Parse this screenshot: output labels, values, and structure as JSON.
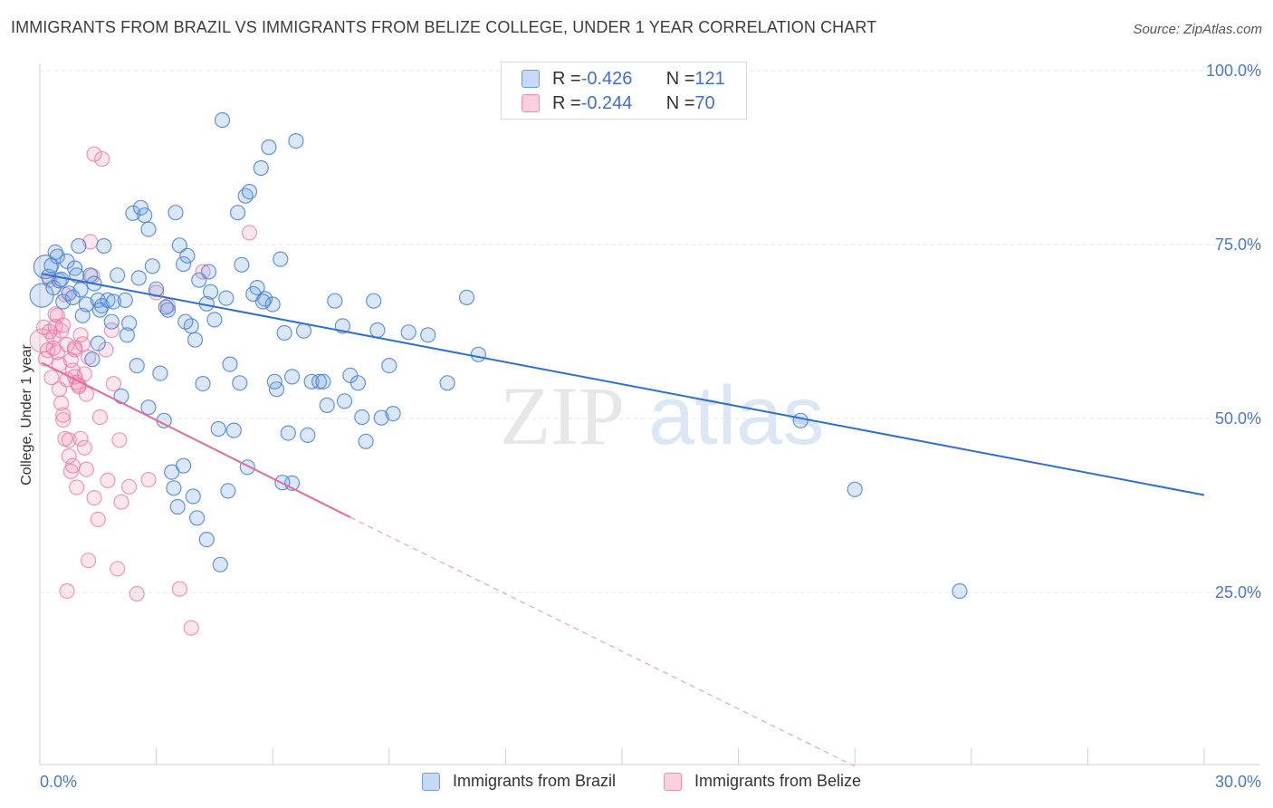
{
  "title": "IMMIGRANTS FROM BRAZIL VS IMMIGRANTS FROM BELIZE COLLEGE, UNDER 1 YEAR CORRELATION CHART",
  "source": "Source: ZipAtlas.com",
  "watermark": {
    "zip": "ZIP",
    "atlas": "atlas"
  },
  "legend": {
    "rows": [
      {
        "r_label": "R = ",
        "r_value": "-0.426",
        "n_label": "N = ",
        "n_value": "121",
        "color": "#6a9fe6"
      },
      {
        "r_label": "R = ",
        "r_value": "-0.244",
        "n_label": "N = ",
        "n_value": "70",
        "color": "#f18bb0"
      }
    ]
  },
  "bottom_legend": [
    {
      "label": "Immigrants from Brazil",
      "color": "#6a9fe6"
    },
    {
      "label": "Immigrants from Belize",
      "color": "#f18bb0"
    }
  ],
  "chart_data": {
    "type": "scatter",
    "title": "IMMIGRANTS FROM BRAZIL VS IMMIGRANTS FROM BELIZE COLLEGE, UNDER 1 YEAR CORRELATION CHART",
    "xlabel": "",
    "ylabel": "College, Under 1 year",
    "xlim": [
      0,
      30
    ],
    "ylim": [
      0,
      105
    ],
    "x_tick_labels": [
      "0.0%",
      "30.0%"
    ],
    "y_ticks": [
      25,
      50,
      75,
      100
    ],
    "y_tick_labels": [
      "25.0%",
      "50.0%",
      "75.0%",
      "100.0%"
    ],
    "grid": true,
    "series": [
      {
        "name": "Immigrants from Brazil",
        "color": "#6a9fe6",
        "trend": {
          "x0": 0.05,
          "y0": 70.8,
          "x1": 30.0,
          "y1": 39.0
        },
        "points": [
          [
            0.05,
            67.7,
            "big"
          ],
          [
            0.15,
            71.8,
            "big"
          ],
          [
            0.22,
            70.4
          ],
          [
            0.3,
            72.0
          ],
          [
            0.35,
            68.8
          ],
          [
            0.45,
            73.3
          ],
          [
            0.5,
            69.8
          ],
          [
            0.55,
            70.0
          ],
          [
            0.6,
            66.8
          ],
          [
            0.7,
            72.6
          ],
          [
            0.75,
            68.0
          ],
          [
            0.85,
            67.4
          ],
          [
            0.9,
            71.6
          ],
          [
            1.0,
            74.8
          ],
          [
            1.05,
            68.5
          ],
          [
            1.1,
            64.8
          ],
          [
            1.2,
            66.4
          ],
          [
            1.3,
            70.6
          ],
          [
            1.4,
            69.4
          ],
          [
            1.5,
            67.0
          ],
          [
            1.6,
            66.2
          ],
          [
            1.65,
            74.8
          ],
          [
            1.75,
            67.0
          ],
          [
            1.85,
            63.9
          ],
          [
            1.9,
            66.8
          ],
          [
            2.0,
            70.6
          ],
          [
            2.1,
            53.2
          ],
          [
            2.2,
            67.0
          ],
          [
            2.3,
            63.7
          ],
          [
            2.4,
            79.5
          ],
          [
            2.5,
            57.6
          ],
          [
            2.6,
            80.3
          ],
          [
            2.7,
            79.2
          ],
          [
            2.8,
            77.2
          ],
          [
            2.9,
            71.9
          ],
          [
            3.0,
            68.6
          ],
          [
            3.1,
            56.5
          ],
          [
            3.2,
            49.7
          ],
          [
            3.3,
            65.6
          ],
          [
            3.4,
            42.3
          ],
          [
            3.5,
            79.6
          ],
          [
            3.6,
            74.9
          ],
          [
            3.7,
            72.2
          ],
          [
            3.8,
            73.4
          ],
          [
            3.9,
            63.3
          ],
          [
            4.0,
            61.3
          ],
          [
            4.1,
            69.9
          ],
          [
            4.2,
            55.0
          ],
          [
            4.3,
            66.5
          ],
          [
            4.4,
            68.2
          ],
          [
            4.5,
            64.2
          ],
          [
            4.6,
            48.5
          ],
          [
            4.7,
            92.9
          ],
          [
            4.8,
            67.3
          ],
          [
            4.9,
            57.8
          ],
          [
            5.0,
            48.3
          ],
          [
            5.1,
            79.6
          ],
          [
            5.2,
            72.1
          ],
          [
            5.3,
            82.0
          ],
          [
            5.4,
            82.6
          ],
          [
            5.5,
            67.9
          ],
          [
            5.6,
            68.8
          ],
          [
            5.7,
            86.0
          ],
          [
            5.8,
            67.2
          ],
          [
            5.9,
            89.0
          ],
          [
            6.0,
            66.4
          ],
          [
            6.1,
            54.2
          ],
          [
            6.2,
            72.9
          ],
          [
            6.3,
            62.3
          ],
          [
            6.4,
            47.9
          ],
          [
            6.5,
            56.0
          ],
          [
            6.6,
            89.9
          ],
          [
            6.8,
            62.6
          ],
          [
            7.0,
            55.3
          ],
          [
            7.2,
            55.3
          ],
          [
            7.4,
            51.9
          ],
          [
            7.6,
            66.9
          ],
          [
            7.8,
            63.3
          ],
          [
            8.0,
            56.2
          ],
          [
            8.2,
            55.1
          ],
          [
            8.4,
            46.7
          ],
          [
            8.6,
            66.9
          ],
          [
            8.8,
            50.1
          ],
          [
            9.0,
            57.6
          ],
          [
            9.5,
            62.4
          ],
          [
            10.0,
            62.0
          ],
          [
            10.5,
            55.1
          ],
          [
            11.0,
            67.4
          ],
          [
            11.3,
            59.2
          ],
          [
            3.45,
            40.0
          ],
          [
            3.7,
            43.2
          ],
          [
            3.95,
            38.8
          ],
          [
            4.3,
            32.6
          ],
          [
            4.65,
            29.0
          ],
          [
            6.5,
            40.7
          ],
          [
            6.05,
            55.3
          ],
          [
            7.3,
            55.3
          ],
          [
            8.3,
            50.2
          ],
          [
            9.1,
            50.7
          ],
          [
            19.6,
            49.7
          ],
          [
            21.0,
            39.8
          ],
          [
            23.7,
            25.2
          ],
          [
            2.25,
            62.0
          ],
          [
            1.5,
            60.8
          ],
          [
            1.35,
            58.5
          ],
          [
            2.8,
            51.6
          ],
          [
            3.55,
            37.3
          ],
          [
            4.05,
            35.7
          ],
          [
            0.4,
            73.9
          ],
          [
            0.95,
            70.6
          ],
          [
            1.55,
            65.6
          ],
          [
            2.55,
            70.2
          ],
          [
            3.25,
            66.0
          ],
          [
            3.75,
            63.9
          ],
          [
            4.35,
            71.1
          ],
          [
            5.15,
            55.1
          ],
          [
            5.75,
            66.8
          ],
          [
            6.9,
            47.6
          ],
          [
            8.7,
            62.7
          ],
          [
            5.35,
            43.0
          ],
          [
            6.25,
            40.8
          ],
          [
            4.85,
            39.6
          ],
          [
            7.85,
            52.5
          ]
        ]
      },
      {
        "name": "Immigrants from Belize",
        "color": "#f18bb0",
        "trend": {
          "x0": 0.05,
          "y0": 58.0,
          "x1": 8.0,
          "y1": 35.8
        },
        "trend_dashed": {
          "x0": 8.0,
          "y0": 35.8,
          "x1": 21.0,
          "y1": 0.0
        },
        "points": [
          [
            0.05,
            61.2,
            "big"
          ],
          [
            0.1,
            63.1
          ],
          [
            0.15,
            58.6
          ],
          [
            0.2,
            59.8
          ],
          [
            0.25,
            62.5
          ],
          [
            0.3,
            55.9
          ],
          [
            0.35,
            60.1
          ],
          [
            0.4,
            63.2
          ],
          [
            0.45,
            64.8
          ],
          [
            0.5,
            54.2
          ],
          [
            0.55,
            52.2
          ],
          [
            0.6,
            49.8
          ],
          [
            0.65,
            67.8
          ],
          [
            0.7,
            55.6
          ],
          [
            0.75,
            46.9
          ],
          [
            0.8,
            42.4
          ],
          [
            0.85,
            56.9
          ],
          [
            0.9,
            59.9
          ],
          [
            0.95,
            55.2
          ],
          [
            1.0,
            54.6
          ],
          [
            1.05,
            62.0
          ],
          [
            1.1,
            60.7
          ],
          [
            1.15,
            56.4
          ],
          [
            1.2,
            53.5
          ],
          [
            1.25,
            58.8
          ],
          [
            1.3,
            75.4
          ],
          [
            1.35,
            70.5
          ],
          [
            1.4,
            38.6
          ],
          [
            1.5,
            35.5
          ],
          [
            1.55,
            50.2
          ],
          [
            1.6,
            87.3
          ],
          [
            1.7,
            59.9
          ],
          [
            1.75,
            41.1
          ],
          [
            1.85,
            62.7
          ],
          [
            1.9,
            55.0
          ],
          [
            2.0,
            28.4
          ],
          [
            2.05,
            46.9
          ],
          [
            2.1,
            38.0
          ],
          [
            2.3,
            40.2
          ],
          [
            2.5,
            24.8
          ],
          [
            2.8,
            41.2
          ],
          [
            3.0,
            68.1
          ],
          [
            3.3,
            66.2
          ],
          [
            3.6,
            25.5
          ],
          [
            3.9,
            19.9
          ],
          [
            4.2,
            71.1
          ],
          [
            5.4,
            76.7
          ],
          [
            0.4,
            65.0
          ],
          [
            0.55,
            62.6
          ],
          [
            0.7,
            60.6
          ],
          [
            0.8,
            58.4
          ],
          [
            0.9,
            56.0
          ],
          [
            1.0,
            54.8
          ],
          [
            0.35,
            61.7
          ],
          [
            0.5,
            57.8
          ],
          [
            0.6,
            50.5
          ],
          [
            0.65,
            47.1
          ],
          [
            0.75,
            44.6
          ],
          [
            0.85,
            43.2
          ],
          [
            0.95,
            40.1
          ],
          [
            1.05,
            47.1
          ],
          [
            1.15,
            45.8
          ],
          [
            1.25,
            29.6
          ],
          [
            1.4,
            88.0
          ],
          [
            0.25,
            69.9
          ],
          [
            0.45,
            59.5
          ],
          [
            0.6,
            63.4
          ],
          [
            0.7,
            25.2
          ],
          [
            0.9,
            60.2
          ],
          [
            1.2,
            42.7
          ]
        ]
      }
    ]
  }
}
